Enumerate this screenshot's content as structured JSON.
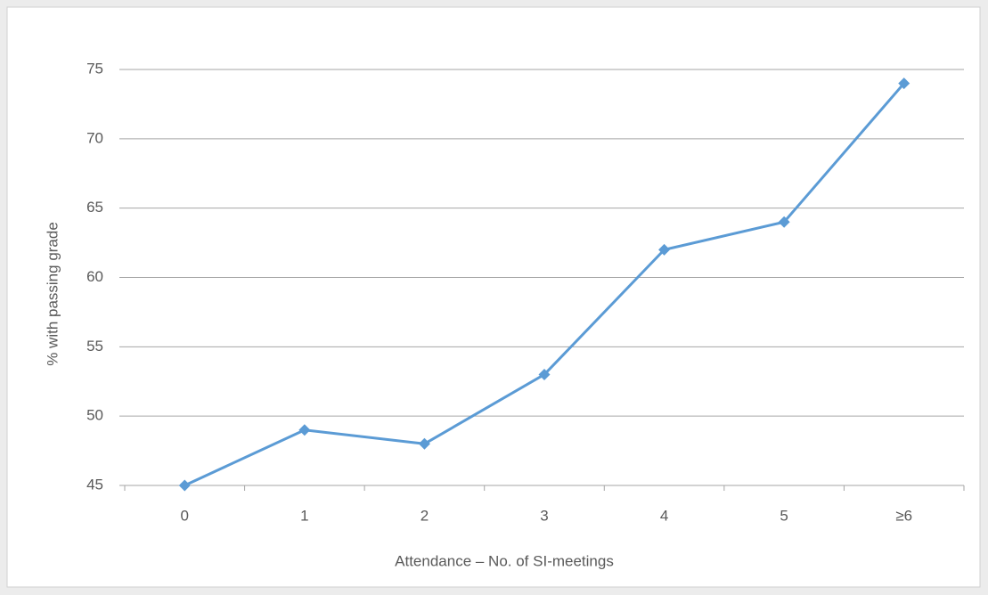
{
  "chart_data": {
    "type": "line",
    "x_label": "Attendance – No. of SI-meetings",
    "y_label": "% with passing grade",
    "categories": [
      "0",
      "1",
      "2",
      "3",
      "4",
      "5",
      "≥6"
    ],
    "series": [
      {
        "name": "% with passing grade",
        "color": "#5b9bd5",
        "values": [
          45,
          49,
          48,
          53,
          62,
          64,
          74
        ]
      }
    ],
    "ylim": [
      45,
      75
    ],
    "yticks": [
      45,
      50,
      55,
      60,
      65,
      70,
      75
    ],
    "grid": true
  }
}
